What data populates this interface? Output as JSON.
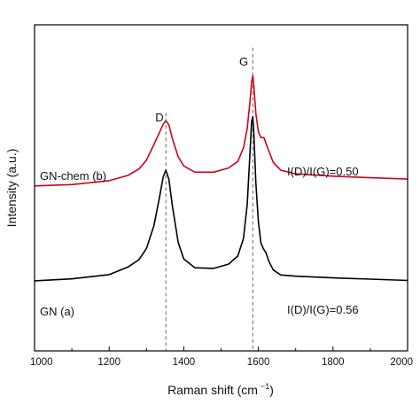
{
  "chart_data": {
    "type": "line",
    "xlabel": "Raman shift (cm",
    "xlabel_sup": "−1",
    "xlabel_close": ")",
    "ylabel": "Intensity (a.u.)",
    "xlim": [
      1000,
      2000
    ],
    "ylim": [
      0,
      100
    ],
    "xticks": [
      1000,
      1200,
      1400,
      1600,
      1800,
      2000
    ],
    "grid": false,
    "series": [
      {
        "name": "GN-chem (b)",
        "color": "#d0021b",
        "points": [
          [
            1000,
            50.6
          ],
          [
            1100,
            51.0
          ],
          [
            1200,
            52.2
          ],
          [
            1250,
            53.8
          ],
          [
            1280,
            55.8
          ],
          [
            1300,
            58.5
          ],
          [
            1320,
            63.3
          ],
          [
            1335,
            67.0
          ],
          [
            1345,
            69.5
          ],
          [
            1352,
            70.6
          ],
          [
            1360,
            69.3
          ],
          [
            1370,
            64.9
          ],
          [
            1385,
            59.5
          ],
          [
            1400,
            56.7
          ],
          [
            1430,
            54.8
          ],
          [
            1480,
            54.8
          ],
          [
            1520,
            56.1
          ],
          [
            1545,
            58.1
          ],
          [
            1560,
            62.3
          ],
          [
            1570,
            68.2
          ],
          [
            1577,
            75.8
          ],
          [
            1582,
            82.5
          ],
          [
            1585,
            84.4
          ],
          [
            1588,
            81.2
          ],
          [
            1593,
            72.9
          ],
          [
            1600,
            67.2
          ],
          [
            1607,
            65.4
          ],
          [
            1615,
            65.4
          ],
          [
            1625,
            62.2
          ],
          [
            1640,
            57.8
          ],
          [
            1660,
            55.4
          ],
          [
            1700,
            54.3
          ],
          [
            1800,
            53.6
          ],
          [
            1900,
            53.1
          ],
          [
            2000,
            52.7
          ]
        ]
      },
      {
        "name": "GN (a)",
        "color": "#000000",
        "points": [
          [
            1000,
            21.5
          ],
          [
            1100,
            22.1
          ],
          [
            1200,
            23.4
          ],
          [
            1250,
            25.7
          ],
          [
            1280,
            28.0
          ],
          [
            1300,
            31.4
          ],
          [
            1320,
            38.4
          ],
          [
            1335,
            47.1
          ],
          [
            1345,
            53.4
          ],
          [
            1352,
            55.4
          ],
          [
            1360,
            52.6
          ],
          [
            1370,
            44.0
          ],
          [
            1385,
            33.3
          ],
          [
            1400,
            28.2
          ],
          [
            1430,
            25.5
          ],
          [
            1480,
            25.3
          ],
          [
            1520,
            26.6
          ],
          [
            1545,
            29.1
          ],
          [
            1560,
            34.5
          ],
          [
            1570,
            44.9
          ],
          [
            1577,
            59.5
          ],
          [
            1582,
            70.4
          ],
          [
            1585,
            71.8
          ],
          [
            1588,
            66.7
          ],
          [
            1593,
            51.8
          ],
          [
            1600,
            39.6
          ],
          [
            1607,
            33.1
          ],
          [
            1613,
            31.4
          ],
          [
            1620,
            30.2
          ],
          [
            1628,
            27.5
          ],
          [
            1640,
            24.8
          ],
          [
            1660,
            23.3
          ],
          [
            1700,
            22.9
          ],
          [
            1800,
            22.4
          ],
          [
            1900,
            22.0
          ],
          [
            2000,
            21.6
          ]
        ]
      }
    ],
    "peaks": [
      {
        "label": "D",
        "x": 1352,
        "top": 73
      },
      {
        "label": "G",
        "x": 1585,
        "top": 93
      }
    ],
    "annotations": [
      {
        "text": "GN-chem (b)",
        "series": 0
      },
      {
        "text": "I(D)/I(G)=0.50",
        "series": 0
      },
      {
        "text": "GN (a)",
        "series": 1
      },
      {
        "text": "I(D)/I(G)=0.56",
        "series": 1
      }
    ]
  }
}
